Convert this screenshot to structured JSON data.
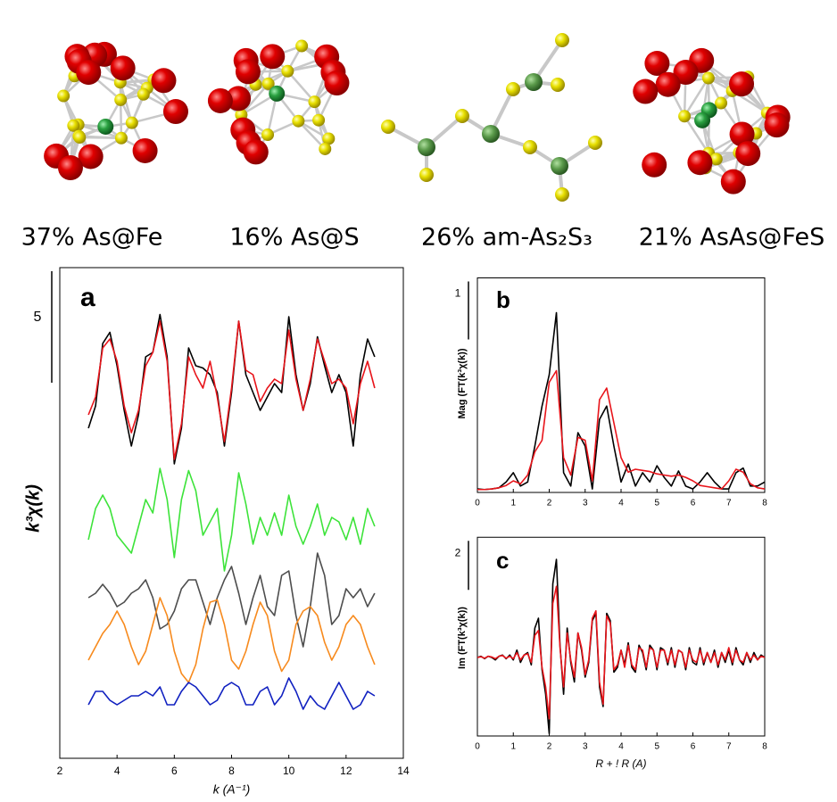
{
  "structures": [
    {
      "label": "37% As@Fe"
    },
    {
      "label": "16% As@S"
    },
    {
      "label": "26% am-As₂S₃"
    },
    {
      "label": "21% AsAs@FeS"
    }
  ],
  "chart_data": [
    {
      "type": "line",
      "panel_label": "a",
      "y_label": "k³χ(k)",
      "x_label": "k (A⁻¹)",
      "xlim": [
        2,
        14
      ],
      "xticks": [
        2,
        4,
        6,
        8,
        10,
        12,
        14
      ],
      "ylim": [
        0,
        22
      ],
      "scale_bar": 5,
      "x": [
        3,
        3.25,
        3.5,
        3.75,
        4,
        4.25,
        4.5,
        4.75,
        5,
        5.25,
        5.5,
        5.75,
        6,
        6.25,
        6.5,
        6.75,
        7,
        7.25,
        7.5,
        7.75,
        8,
        8.25,
        8.5,
        8.75,
        9,
        9.25,
        9.5,
        9.75,
        10,
        10.25,
        10.5,
        10.75,
        11,
        11.25,
        11.5,
        11.75,
        12,
        12.25,
        12.5,
        12.75,
        13
      ],
      "series": [
        {
          "color": "#000000",
          "values": [
            14.8,
            15.8,
            18.6,
            19.1,
            17.6,
            15.6,
            14,
            15.4,
            18,
            18.2,
            19.9,
            18,
            13.2,
            14.8,
            18.4,
            17.6,
            17.5,
            17.2,
            16.4,
            14,
            16.4,
            19.6,
            17.2,
            16.4,
            15.6,
            16.2,
            16.8,
            16.4,
            19.8,
            17.2,
            15.6,
            16.8,
            18.9,
            17.6,
            16.4,
            17.2,
            16.4,
            14,
            17.2,
            18.8,
            18
          ]
        },
        {
          "color": "#e8141a",
          "values": [
            15.4,
            16.2,
            18.4,
            18.8,
            17.8,
            15.8,
            14.6,
            15.6,
            17.6,
            18.2,
            19.6,
            17.8,
            13.4,
            15,
            18,
            17.2,
            16.6,
            17.8,
            16.2,
            14.2,
            16.6,
            19.6,
            17.4,
            17.2,
            16,
            16.6,
            17,
            16.8,
            19.2,
            17,
            15.6,
            17,
            18.8,
            17.8,
            16.8,
            17,
            16.6,
            15,
            16.8,
            17.8,
            16.6
          ]
        },
        {
          "color": "#3de33a",
          "values": [
            9.8,
            11.2,
            11.8,
            11.2,
            10,
            9.6,
            9.2,
            10.4,
            11.6,
            11,
            13,
            11.6,
            9,
            11.6,
            12.9,
            12,
            10,
            10.6,
            11.2,
            8.4,
            10,
            12.8,
            11.4,
            9.6,
            10.8,
            10,
            11,
            10,
            11.8,
            10.4,
            9.6,
            10.4,
            11.4,
            10,
            10.8,
            10.6,
            9.8,
            10.8,
            9.6,
            11.2,
            10.4
          ]
        },
        {
          "color": "#4d4d4d",
          "values": [
            7.2,
            7.4,
            7.8,
            7.4,
            6.8,
            7,
            7.4,
            7.6,
            8,
            7.2,
            5.8,
            6,
            6.6,
            7.6,
            8,
            8,
            7,
            6,
            7.2,
            8,
            8.6,
            7.4,
            6,
            7.2,
            8.2,
            6.8,
            6.4,
            8.2,
            8.4,
            6.4,
            5,
            6.8,
            9.2,
            8.2,
            6,
            6.4,
            7.6,
            7.2,
            7.6,
            6.8,
            7.4
          ]
        },
        {
          "color": "#f78a1d",
          "values": [
            4.4,
            5,
            5.6,
            6,
            6.6,
            6,
            5,
            4.2,
            4.8,
            6,
            7.2,
            6.4,
            4.8,
            3.8,
            3.4,
            4.2,
            5.8,
            7,
            7.1,
            6,
            4.4,
            4,
            4.8,
            6,
            7,
            6.4,
            4.8,
            3.9,
            4.4,
            6,
            6.6,
            6.8,
            6.4,
            5.2,
            4.4,
            5,
            6,
            6.4,
            6,
            5,
            4.2
          ]
        },
        {
          "color": "#1020c0",
          "values": [
            2.4,
            3,
            3,
            2.6,
            2.4,
            2.6,
            2.8,
            2.8,
            3,
            2.8,
            3.2,
            2.4,
            2.4,
            3,
            3.4,
            3.2,
            2.8,
            2.4,
            2.6,
            3.2,
            3.4,
            3.2,
            2.4,
            2.4,
            3,
            3.2,
            2.4,
            2.8,
            3.6,
            3,
            2.2,
            2.8,
            2.4,
            2.2,
            2.8,
            3.4,
            2.8,
            2.2,
            2.4,
            3,
            2.8
          ]
        }
      ]
    },
    {
      "type": "line",
      "panel_label": "b",
      "y_label": "Mag (FT(k³χ(k))",
      "xlim": [
        0,
        8
      ],
      "xticks": [
        0,
        1,
        2,
        3,
        4,
        5,
        6,
        7,
        8
      ],
      "ylim": [
        0,
        3.7
      ],
      "scale_bar": 1,
      "x": [
        0,
        0.2,
        0.4,
        0.6,
        0.8,
        1,
        1.2,
        1.4,
        1.6,
        1.8,
        2,
        2.2,
        2.4,
        2.6,
        2.8,
        3,
        3.2,
        3.4,
        3.6,
        3.8,
        4,
        4.2,
        4.4,
        4.6,
        4.8,
        5,
        5.2,
        5.4,
        5.6,
        5.8,
        6,
        6.2,
        6.4,
        6.6,
        6.8,
        7,
        7.2,
        7.4,
        7.6,
        7.8,
        8
      ],
      "series": [
        {
          "color": "#000000",
          "values": [
            0.06,
            0.05,
            0.06,
            0.08,
            0.18,
            0.34,
            0.11,
            0.18,
            0.8,
            1.49,
            2.03,
            3.1,
            0.34,
            0.11,
            1.03,
            0.8,
            0.06,
            1.26,
            1.49,
            0.8,
            0.18,
            0.49,
            0.11,
            0.34,
            0.18,
            0.46,
            0.26,
            0.11,
            0.37,
            0.11,
            0.06,
            0.18,
            0.34,
            0.18,
            0.06,
            0.06,
            0.34,
            0.42,
            0.11,
            0.11,
            0.18
          ]
        },
        {
          "color": "#e8141a",
          "values": [
            0.05,
            0.05,
            0.06,
            0.08,
            0.12,
            0.2,
            0.15,
            0.3,
            0.7,
            0.9,
            1.9,
            2.1,
            0.6,
            0.3,
            0.95,
            0.9,
            0.2,
            1.6,
            1.8,
            1.2,
            0.6,
            0.35,
            0.4,
            0.38,
            0.36,
            0.32,
            0.3,
            0.28,
            0.3,
            0.26,
            0.2,
            0.12,
            0.1,
            0.08,
            0.06,
            0.2,
            0.4,
            0.35,
            0.15,
            0.08,
            0.06
          ]
        }
      ]
    },
    {
      "type": "line",
      "panel_label": "c",
      "y_label": "Im (FT(k³χ(k))",
      "x_label": "R + ! R (A)",
      "xlim": [
        0,
        8
      ],
      "xticks": [
        0,
        1,
        2,
        3,
        4,
        5,
        6,
        7,
        8
      ],
      "ylim": [
        -3.2,
        4.9
      ],
      "scale_bar": 2,
      "x": [
        0,
        0.1,
        0.2,
        0.3,
        0.4,
        0.5,
        0.6,
        0.7,
        0.8,
        0.9,
        1,
        1.1,
        1.2,
        1.3,
        1.4,
        1.5,
        1.6,
        1.7,
        1.8,
        1.9,
        2,
        2.1,
        2.2,
        2.3,
        2.4,
        2.5,
        2.6,
        2.7,
        2.8,
        2.9,
        3,
        3.1,
        3.2,
        3.3,
        3.4,
        3.5,
        3.6,
        3.7,
        3.8,
        3.9,
        4,
        4.1,
        4.2,
        4.3,
        4.4,
        4.5,
        4.6,
        4.7,
        4.8,
        4.9,
        5,
        5.1,
        5.2,
        5.3,
        5.4,
        5.5,
        5.6,
        5.7,
        5.8,
        5.9,
        6,
        6.1,
        6.2,
        6.3,
        6.4,
        6.5,
        6.6,
        6.7,
        6.8,
        6.9,
        7,
        7.1,
        7.2,
        7.3,
        7.4,
        7.5,
        7.6,
        7.7,
        7.8,
        7.9,
        8
      ],
      "series": [
        {
          "color": "#000000",
          "values": [
            0,
            0.05,
            -0.05,
            0.05,
            0,
            -0.1,
            0.05,
            0.1,
            -0.05,
            0.1,
            -0.1,
            0.3,
            -0.2,
            0.1,
            0.2,
            -0.3,
            1.2,
            1.6,
            -0.5,
            -1.5,
            -3.1,
            3,
            4,
            0.5,
            -1.5,
            1.2,
            -0.2,
            -1,
            1,
            0.3,
            -0.8,
            -0.2,
            1.5,
            1.8,
            -1.2,
            -2,
            1.8,
            1.5,
            -0.6,
            -0.4,
            0.3,
            -0.3,
            0.6,
            -0.4,
            -0.6,
            0.5,
            0.2,
            -0.5,
            0.5,
            0.3,
            -0.5,
            0.4,
            0.3,
            -0.3,
            0.4,
            -0.4,
            0.3,
            0.2,
            -0.5,
            0.4,
            -0.2,
            -0.3,
            0.4,
            -0.3,
            0.2,
            -0.2,
            0.3,
            -0.4,
            0.2,
            -0.2,
            0.3,
            -0.3,
            0.4,
            -0.1,
            -0.3,
            0.2,
            -0.2,
            0.2,
            -0.1,
            0.1,
            0
          ]
        },
        {
          "color": "#e8141a",
          "values": [
            0,
            0.03,
            -0.03,
            0.05,
            0.02,
            -0.05,
            0.05,
            0.08,
            -0.03,
            0.05,
            -0.05,
            0.2,
            -0.1,
            0.1,
            0.15,
            -0.2,
            0.9,
            1.1,
            -0.4,
            -1.2,
            -2.5,
            2.2,
            2.9,
            0.4,
            -1.2,
            1,
            -0.1,
            -0.8,
            1,
            0.4,
            -0.7,
            -0.1,
            1.6,
            1.9,
            -1,
            -1.9,
            1.7,
            1.4,
            -0.5,
            -0.3,
            0.3,
            -0.4,
            0.5,
            -0.3,
            -0.5,
            0.4,
            0.3,
            -0.4,
            0.4,
            0.3,
            -0.4,
            0.3,
            0.3,
            -0.2,
            0.3,
            -0.3,
            0.3,
            0.2,
            -0.4,
            0.3,
            -0.1,
            -0.2,
            0.3,
            -0.2,
            0.2,
            -0.2,
            0.2,
            -0.3,
            0.2,
            -0.1,
            0.4,
            -0.2,
            0.3,
            -0.1,
            -0.2,
            0.2,
            -0.1,
            0.1,
            -0.1,
            0.05,
            0
          ]
        }
      ]
    }
  ]
}
